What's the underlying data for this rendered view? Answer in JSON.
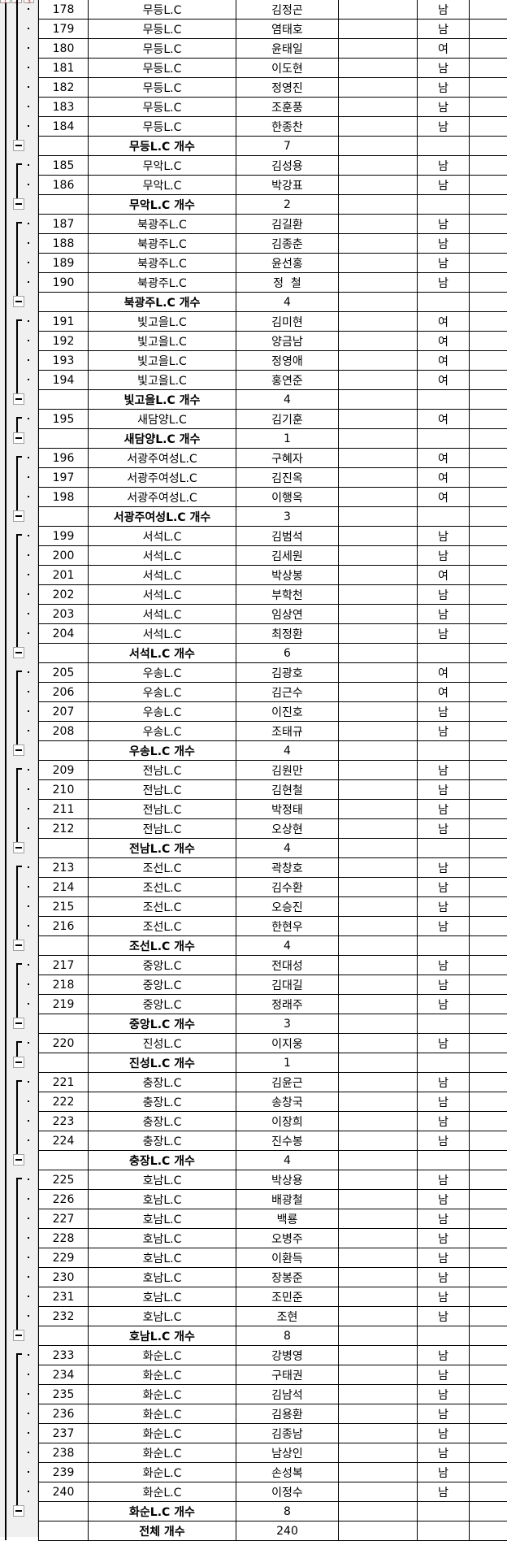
{
  "outline": {
    "levels": [
      "1",
      "2",
      "3"
    ]
  },
  "groups": [
    {
      "club": "무등L.C",
      "subtotal_label": "무등L.C 개수",
      "count": "7",
      "rows": [
        {
          "no": "178",
          "name": "김정곤",
          "gender": "남"
        },
        {
          "no": "179",
          "name": "염태호",
          "gender": "남"
        },
        {
          "no": "180",
          "name": "윤태일",
          "gender": "여"
        },
        {
          "no": "181",
          "name": "이도현",
          "gender": "남"
        },
        {
          "no": "182",
          "name": "정영진",
          "gender": "남"
        },
        {
          "no": "183",
          "name": "조훈풍",
          "gender": "남"
        },
        {
          "no": "184",
          "name": "한종찬",
          "gender": "남"
        }
      ]
    },
    {
      "club": "무악L.C",
      "subtotal_label": "무악L.C 개수",
      "count": "2",
      "rows": [
        {
          "no": "185",
          "name": "김성용",
          "gender": "남"
        },
        {
          "no": "186",
          "name": "박강표",
          "gender": "남"
        }
      ]
    },
    {
      "club": "북광주L.C",
      "subtotal_label": "북광주L.C 개수",
      "count": "4",
      "rows": [
        {
          "no": "187",
          "name": "김길환",
          "gender": "남"
        },
        {
          "no": "188",
          "name": "김종춘",
          "gender": "남"
        },
        {
          "no": "189",
          "name": "윤선홍",
          "gender": "남"
        },
        {
          "no": "190",
          "name": "정  철",
          "gender": "남"
        }
      ]
    },
    {
      "club": "빛고을L.C",
      "subtotal_label": "빛고을L.C 개수",
      "count": "4",
      "rows": [
        {
          "no": "191",
          "name": "김미현",
          "gender": "여"
        },
        {
          "no": "192",
          "name": "양금남",
          "gender": "여"
        },
        {
          "no": "193",
          "name": "정영애",
          "gender": "여"
        },
        {
          "no": "194",
          "name": "홍연준",
          "gender": "여"
        }
      ]
    },
    {
      "club": "새담양L.C",
      "subtotal_label": "새담양L.C 개수",
      "count": "1",
      "rows": [
        {
          "no": "195",
          "name": "김기훈",
          "gender": "여"
        }
      ]
    },
    {
      "club": "서광주여성L.C",
      "subtotal_label": "서광주여성L.C 개수",
      "count": "3",
      "rows": [
        {
          "no": "196",
          "name": "구혜자",
          "gender": "여"
        },
        {
          "no": "197",
          "name": "김진옥",
          "gender": "여"
        },
        {
          "no": "198",
          "name": "이행옥",
          "gender": "여"
        }
      ]
    },
    {
      "club": "서석L.C",
      "subtotal_label": "서석L.C 개수",
      "count": "6",
      "rows": [
        {
          "no": "199",
          "name": "김범석",
          "gender": "남"
        },
        {
          "no": "200",
          "name": "김세원",
          "gender": "남"
        },
        {
          "no": "201",
          "name": "박상봉",
          "gender": "여"
        },
        {
          "no": "202",
          "name": "부학천",
          "gender": "남"
        },
        {
          "no": "203",
          "name": "임상연",
          "gender": "남"
        },
        {
          "no": "204",
          "name": "최정환",
          "gender": "남"
        }
      ]
    },
    {
      "club": "우송L.C",
      "subtotal_label": "우송L.C 개수",
      "count": "4",
      "rows": [
        {
          "no": "205",
          "name": "김광호",
          "gender": "여"
        },
        {
          "no": "206",
          "name": "김근수",
          "gender": "여"
        },
        {
          "no": "207",
          "name": "이진호",
          "gender": "남"
        },
        {
          "no": "208",
          "name": "조태규",
          "gender": "남"
        }
      ]
    },
    {
      "club": "전남L.C",
      "subtotal_label": "전남L.C 개수",
      "count": "4",
      "rows": [
        {
          "no": "209",
          "name": "김원만",
          "gender": "남"
        },
        {
          "no": "210",
          "name": "김현철",
          "gender": "남"
        },
        {
          "no": "211",
          "name": "박정태",
          "gender": "남"
        },
        {
          "no": "212",
          "name": "오상현",
          "gender": "남"
        }
      ]
    },
    {
      "club": "조선L.C",
      "subtotal_label": "조선L.C 개수",
      "count": "4",
      "rows": [
        {
          "no": "213",
          "name": "곽창호",
          "gender": "남"
        },
        {
          "no": "214",
          "name": "김수환",
          "gender": "남"
        },
        {
          "no": "215",
          "name": "오승진",
          "gender": "남"
        },
        {
          "no": "216",
          "name": "한현우",
          "gender": "남"
        }
      ]
    },
    {
      "club": "중앙L.C",
      "subtotal_label": "중앙L.C 개수",
      "count": "3",
      "rows": [
        {
          "no": "217",
          "name": "전대성",
          "gender": "남"
        },
        {
          "no": "218",
          "name": "김대길",
          "gender": "남"
        },
        {
          "no": "219",
          "name": "정래주",
          "gender": "남"
        }
      ]
    },
    {
      "club": "진성L.C",
      "subtotal_label": "진성L.C 개수",
      "count": "1",
      "rows": [
        {
          "no": "220",
          "name": "이지웅",
          "gender": "남"
        }
      ]
    },
    {
      "club": "충장L.C",
      "subtotal_label": "충장L.C 개수",
      "count": "4",
      "rows": [
        {
          "no": "221",
          "name": "김윤근",
          "gender": "남"
        },
        {
          "no": "222",
          "name": "송창국",
          "gender": "남"
        },
        {
          "no": "223",
          "name": "이장희",
          "gender": "남"
        },
        {
          "no": "224",
          "name": "진수봉",
          "gender": "남"
        }
      ]
    },
    {
      "club": "호남L.C",
      "subtotal_label": "호남L.C 개수",
      "count": "8",
      "rows": [
        {
          "no": "225",
          "name": "박상용",
          "gender": "남"
        },
        {
          "no": "226",
          "name": "배광철",
          "gender": "남"
        },
        {
          "no": "227",
          "name": "백룡",
          "gender": "남"
        },
        {
          "no": "228",
          "name": "오병주",
          "gender": "남"
        },
        {
          "no": "229",
          "name": "이환득",
          "gender": "남"
        },
        {
          "no": "230",
          "name": "장봉준",
          "gender": "남"
        },
        {
          "no": "231",
          "name": "조민준",
          "gender": "남"
        },
        {
          "no": "232",
          "name": "조현",
          "gender": "남"
        }
      ]
    },
    {
      "club": "화순L.C",
      "subtotal_label": "화순L.C 개수",
      "count": "8",
      "rows": [
        {
          "no": "233",
          "name": "강병영",
          "gender": "남"
        },
        {
          "no": "234",
          "name": "구태권",
          "gender": "남"
        },
        {
          "no": "235",
          "name": "김남석",
          "gender": "남"
        },
        {
          "no": "236",
          "name": "김용환",
          "gender": "남"
        },
        {
          "no": "237",
          "name": "김종남",
          "gender": "남"
        },
        {
          "no": "238",
          "name": "남상인",
          "gender": "남"
        },
        {
          "no": "239",
          "name": "손성복",
          "gender": "남"
        },
        {
          "no": "240",
          "name": "이정수",
          "gender": "남"
        }
      ]
    }
  ],
  "total": {
    "label": "전체 개수",
    "count": "240"
  }
}
